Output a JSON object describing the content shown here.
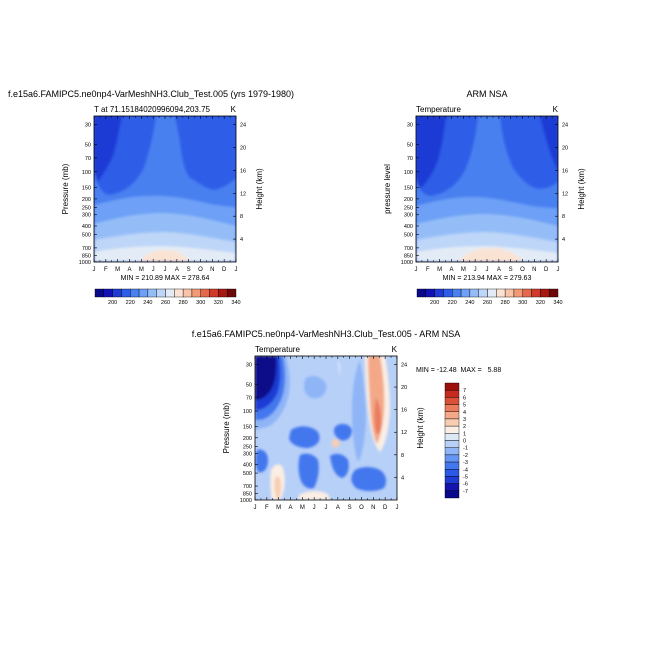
{
  "chart_data": [
    {
      "type": "heatmap",
      "title": "f.e15a6.FAMIPC5.ne0np4-VarMeshNH3.Club_Test.005 (yrs 1979-1980)",
      "subtitle": "T at 71.15184020996094,203.75",
      "units": "K",
      "ylabel": "Pressure (mb)",
      "ylabel_right": "Height (km)",
      "x_tick_labels": [
        "J",
        "F",
        "M",
        "A",
        "M",
        "J",
        "J",
        "A",
        "S",
        "O",
        "N",
        "D",
        "J"
      ],
      "y_tick_labels": [
        "30",
        "50",
        "70",
        "100",
        "150",
        "200",
        "250",
        "300",
        "400",
        "500",
        "700",
        "850",
        "1000"
      ],
      "y_tick_values": [
        30,
        50,
        70,
        100,
        150,
        200,
        250,
        300,
        400,
        500,
        700,
        850,
        1000
      ],
      "height_tick_labels": [
        "24",
        "20",
        "16",
        "12",
        "8",
        "4"
      ],
      "height_tick_values": [
        24,
        20,
        16,
        12,
        8,
        4
      ],
      "stats": "MIN = 210.89  MAX = 278.64",
      "min": 210.89,
      "max": 278.64,
      "colorbar_levels": [
        "200",
        "220",
        "240",
        "260",
        "280",
        "300",
        "320",
        "340"
      ]
    },
    {
      "type": "heatmap",
      "title": "ARM NSA",
      "subtitle": "Temperature",
      "units": "K",
      "ylabel": "pressure level",
      "ylabel_right": "Height (km)",
      "x_tick_labels": [
        "J",
        "F",
        "M",
        "A",
        "M",
        "J",
        "J",
        "A",
        "S",
        "O",
        "N",
        "D",
        "J"
      ],
      "y_tick_labels": [
        "30",
        "50",
        "70",
        "100",
        "150",
        "200",
        "250",
        "300",
        "400",
        "500",
        "700",
        "850",
        "1000"
      ],
      "y_tick_values": [
        30,
        50,
        70,
        100,
        150,
        200,
        250,
        300,
        400,
        500,
        700,
        850,
        1000
      ],
      "height_tick_labels": [
        "24",
        "20",
        "16",
        "12",
        "8",
        "4"
      ],
      "height_tick_values": [
        24,
        20,
        16,
        12,
        8,
        4
      ],
      "stats": "MIN = 213.94  MAX = 279.63",
      "min": 213.94,
      "max": 279.63,
      "colorbar_levels": [
        "200",
        "220",
        "240",
        "260",
        "280",
        "300",
        "320",
        "340"
      ]
    },
    {
      "type": "heatmap",
      "title": "f.e15a6.FAMIPC5.ne0np4-VarMeshNH3.Club_Test.005 - ARM NSA",
      "subtitle": "Temperature",
      "units": "K",
      "ylabel": "Pressure (mb)",
      "ylabel_right": "Height (km)",
      "x_tick_labels": [
        "J",
        "F",
        "M",
        "A",
        "M",
        "J",
        "J",
        "A",
        "S",
        "O",
        "N",
        "D",
        "J"
      ],
      "y_tick_labels": [
        "30",
        "50",
        "70",
        "100",
        "150",
        "200",
        "250",
        "300",
        "400",
        "500",
        "700",
        "850",
        "1000"
      ],
      "y_tick_values": [
        30,
        50,
        70,
        100,
        150,
        200,
        250,
        300,
        400,
        500,
        700,
        850,
        1000
      ],
      "height_tick_labels": [
        "24",
        "20",
        "16",
        "12",
        "8",
        "4"
      ],
      "height_tick_values": [
        24,
        20,
        16,
        12,
        8,
        4
      ],
      "stats": "MIN = -12.48  MAX =   5.88",
      "min": -12.48,
      "max": 5.88,
      "colorbar_levels": [
        "7",
        "6",
        "5",
        "4",
        "3",
        "2",
        "1",
        "0",
        "-1",
        "-2",
        "-3",
        "-4",
        "-5",
        "-6",
        "-7"
      ]
    }
  ],
  "colors": {
    "abs_palette": [
      "#08088a",
      "#1111b4",
      "#1f3bd4",
      "#2e5ee8",
      "#4a80f0",
      "#6da0f6",
      "#94bdf8",
      "#bed6f8",
      "#e3ecf6",
      "#fbe3d4",
      "#f8c3a6",
      "#f29a76",
      "#e5684c",
      "#cf3a2a",
      "#a81812",
      "#6e0808"
    ],
    "diff_palette": [
      "#08088a",
      "#1313b0",
      "#1f3bd4",
      "#2b58e6",
      "#4377ee",
      "#6696f4",
      "#8fb5f7",
      "#b7d0f8",
      "#dde8f7",
      "#fbeee4",
      "#f8cdb2",
      "#f3a888",
      "#ea7c5e",
      "#dd5038",
      "#c52a1c",
      "#9c0f0c"
    ]
  }
}
